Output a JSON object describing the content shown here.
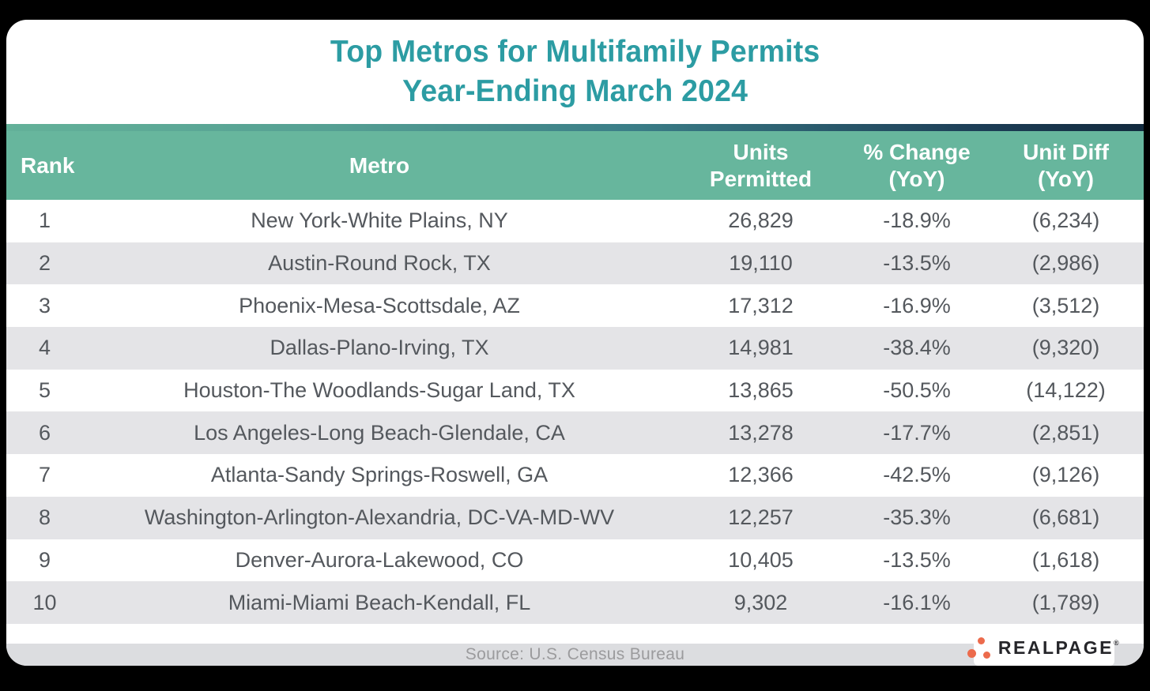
{
  "colors": {
    "background": "#000000",
    "card": "#ffffff",
    "title_teal": "#2c9ca3",
    "header_green": "#67b69d",
    "accent_navy": "#122a3e",
    "row_stripe_gray": "#e4e4e7",
    "footer_gray": "#dcdde0",
    "row_text": "#54585d",
    "logo_orange": "#ec6b4c"
  },
  "title": {
    "line1": "Top Metros for Multifamily Permits",
    "line2": "Year-Ending March 2024"
  },
  "table": {
    "header": {
      "rank": "Rank",
      "metro": "Metro",
      "units_l1": "Units",
      "units_l2": "Permitted",
      "change_l1": "% Change",
      "change_l2": "(YoY)",
      "diff_l1": "Unit Diff",
      "diff_l2": "(YoY)"
    },
    "rows": [
      {
        "rank": "1",
        "metro": "New York-White Plains, NY",
        "units": "26,829",
        "change": "-18.9%",
        "diff": "(6,234)"
      },
      {
        "rank": "2",
        "metro": "Austin-Round Rock, TX",
        "units": "19,110",
        "change": "-13.5%",
        "diff": "(2,986)"
      },
      {
        "rank": "3",
        "metro": "Phoenix-Mesa-Scottsdale, AZ",
        "units": "17,312",
        "change": "-16.9%",
        "diff": "(3,512)"
      },
      {
        "rank": "4",
        "metro": "Dallas-Plano-Irving, TX",
        "units": "14,981",
        "change": "-38.4%",
        "diff": "(9,320)"
      },
      {
        "rank": "5",
        "metro": "Houston-The Woodlands-Sugar Land, TX",
        "units": "13,865",
        "change": "-50.5%",
        "diff": "(14,122)"
      },
      {
        "rank": "6",
        "metro": "Los Angeles-Long Beach-Glendale, CA",
        "units": "13,278",
        "change": "-17.7%",
        "diff": "(2,851)"
      },
      {
        "rank": "7",
        "metro": "Atlanta-Sandy Springs-Roswell, GA",
        "units": "12,366",
        "change": "-42.5%",
        "diff": "(9,126)"
      },
      {
        "rank": "8",
        "metro": "Washington-Arlington-Alexandria, DC-VA-MD-WV",
        "units": "12,257",
        "change": "-35.3%",
        "diff": "(6,681)"
      },
      {
        "rank": "9",
        "metro": "Denver-Aurora-Lakewood, CO",
        "units": "10,405",
        "change": "-13.5%",
        "diff": "(1,618)"
      },
      {
        "rank": "10",
        "metro": "Miami-Miami Beach-Kendall, FL",
        "units": "9,302",
        "change": "-16.1%",
        "diff": "(1,789)"
      }
    ]
  },
  "footer": {
    "source": "Source: U.S. Census Bureau",
    "logo_text": "REALPAGE",
    "logo_mark": "®"
  },
  "chart_data": {
    "type": "table",
    "title": "Top Metros for Multifamily Permits Year-Ending March 2024",
    "columns": [
      "Rank",
      "Metro",
      "Units Permitted",
      "% Change (YoY)",
      "Unit Diff (YoY)"
    ],
    "rows": [
      [
        1,
        "New York-White Plains, NY",
        26829,
        -18.9,
        -6234
      ],
      [
        2,
        "Austin-Round Rock, TX",
        19110,
        -13.5,
        -2986
      ],
      [
        3,
        "Phoenix-Mesa-Scottsdale, AZ",
        17312,
        -16.9,
        -3512
      ],
      [
        4,
        "Dallas-Plano-Irving, TX",
        14981,
        -38.4,
        -9320
      ],
      [
        5,
        "Houston-The Woodlands-Sugar Land, TX",
        13865,
        -50.5,
        -14122
      ],
      [
        6,
        "Los Angeles-Long Beach-Glendale, CA",
        13278,
        -17.7,
        -2851
      ],
      [
        7,
        "Atlanta-Sandy Springs-Roswell, GA",
        12366,
        -42.5,
        -9126
      ],
      [
        8,
        "Washington-Arlington-Alexandria, DC-VA-MD-WV",
        12257,
        -35.3,
        -6681
      ],
      [
        9,
        "Denver-Aurora-Lakewood, CO",
        10405,
        -13.5,
        -1618
      ],
      [
        10,
        "Miami-Miami Beach-Kendall, FL",
        9302,
        -16.1,
        -1789
      ]
    ],
    "source": "Source: U.S. Census Bureau"
  }
}
